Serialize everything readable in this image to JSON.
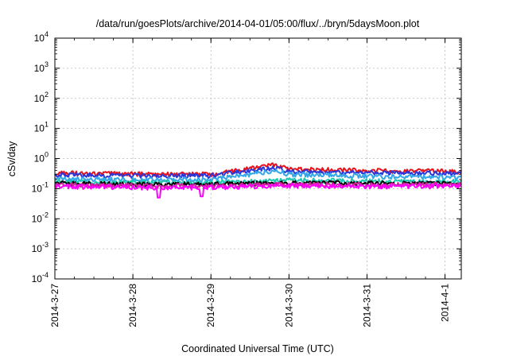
{
  "chart_data": {
    "type": "line",
    "title": "/data/run/goesPlots/archive/2014-04-01/05:00/flux/../bryn/5daysMoon.plot",
    "xlabel": "Coordinated Universal Time (UTC)",
    "ylabel": "cSv/day",
    "yscale": "log",
    "ylim": [
      0.0001,
      10000
    ],
    "y_ticks": [
      {
        "base": "10",
        "exp": "-4",
        "value": 0.0001
      },
      {
        "base": "10",
        "exp": "-3",
        "value": 0.001
      },
      {
        "base": "10",
        "exp": "-2",
        "value": 0.01
      },
      {
        "base": "10",
        "exp": "-1",
        "value": 0.1
      },
      {
        "base": "10",
        "exp": "0",
        "value": 1
      },
      {
        "base": "10",
        "exp": "1",
        "value": 10
      },
      {
        "base": "10",
        "exp": "2",
        "value": 100
      },
      {
        "base": "10",
        "exp": "3",
        "value": 1000
      },
      {
        "base": "10",
        "exp": "4",
        "value": 10000
      }
    ],
    "xlim": [
      "2014-03-27",
      "2014-04-01T05:00"
    ],
    "x_ticks": [
      "2014-3-27",
      "2014-3-28",
      "2014-3-29",
      "2014-3-30",
      "2014-3-31",
      "2014-4-1"
    ],
    "grid": true,
    "legend": "none",
    "series": [
      {
        "color": "#e8121b",
        "baseline": 0.3,
        "high_from": "2014-03-29T20:00",
        "high_to": "2014-03-30T04:00",
        "high_value": 0.62,
        "after_value": 0.4,
        "x_points": [
          "2014-03-27",
          "2014-03-28",
          "2014-03-29",
          "2014-03-29T20:00",
          "2014-03-30",
          "2014-03-31",
          "2014-04-01T05:00"
        ],
        "y_points": [
          0.33,
          0.31,
          0.3,
          0.62,
          0.45,
          0.4,
          0.37
        ]
      },
      {
        "color": "#2b36d9",
        "x_points": [
          "2014-03-27",
          "2014-03-28",
          "2014-03-29",
          "2014-03-29T20:00",
          "2014-03-30",
          "2014-03-31",
          "2014-04-01T05:00"
        ],
        "y_points": [
          0.29,
          0.27,
          0.27,
          0.5,
          0.38,
          0.34,
          0.32
        ]
      },
      {
        "color": "#35a7e8",
        "x_points": [
          "2014-03-27",
          "2014-03-28",
          "2014-03-29",
          "2014-03-29T20:00",
          "2014-03-30",
          "2014-03-31",
          "2014-04-01T05:00"
        ],
        "y_points": [
          0.21,
          0.2,
          0.2,
          0.4,
          0.3,
          0.26,
          0.24
        ]
      },
      {
        "color": "#1ec8b0",
        "x_points": [
          "2014-03-27",
          "2014-03-28",
          "2014-03-29",
          "2014-03-30",
          "2014-03-31",
          "2014-04-01T05:00"
        ],
        "y_points": [
          0.17,
          0.16,
          0.16,
          0.19,
          0.18,
          0.17
        ]
      },
      {
        "color": "#000000",
        "x_points": [
          "2014-03-27",
          "2014-03-28",
          "2014-03-29",
          "2014-03-30",
          "2014-03-31",
          "2014-04-01T05:00"
        ],
        "y_points": [
          0.15,
          0.14,
          0.14,
          0.16,
          0.15,
          0.15
        ]
      },
      {
        "color": "#d3209e",
        "x_points": [
          "2014-03-27",
          "2014-03-28",
          "2014-03-29",
          "2014-03-30",
          "2014-03-31",
          "2014-04-01T05:00"
        ],
        "y_points": [
          0.135,
          0.125,
          0.125,
          0.14,
          0.135,
          0.135
        ]
      },
      {
        "color": "#ff00ff",
        "dips": [
          {
            "x": "2014-03-28T08:00",
            "y": 0.05
          },
          {
            "x": "2014-03-28T21:00",
            "y": 0.055
          }
        ],
        "x_points": [
          "2014-03-27",
          "2014-03-28",
          "2014-03-29",
          "2014-03-30",
          "2014-03-31",
          "2014-04-01T05:00"
        ],
        "y_points": [
          0.12,
          0.11,
          0.11,
          0.125,
          0.12,
          0.12
        ]
      }
    ]
  }
}
